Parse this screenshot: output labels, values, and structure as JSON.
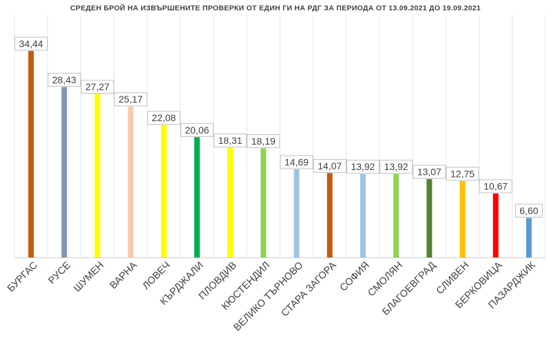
{
  "chart_data": {
    "type": "bar",
    "title": "СРЕДЕН БРОЙ НА ИЗВЪРШЕНИТЕ ПРОВЕРКИ ОТ ЕДИН ГИ НА РДГ ЗА ПЕРИОДА ОТ 13.09.2021 ДО 19.09.2021",
    "categories": [
      "БУРГАС",
      "РУСЕ",
      "ШУМЕН",
      "ВАРНА",
      "ЛОВЕЧ",
      "КЪРДЖАЛИ",
      "ПЛОВДИВ",
      "КЮСТЕНДИЛ",
      "ВЕЛИКО ТЪРНОВО",
      "СТАРА ЗАГОРА",
      "СОФИЯ",
      "СМОЛЯН",
      "БЛАГОЕВГРАД",
      "СЛИВЕН",
      "БЕРКОВИЦА",
      "ПАЗАРДЖИК"
    ],
    "values": [
      34.44,
      28.43,
      27.27,
      25.17,
      22.08,
      20.06,
      18.31,
      18.19,
      14.69,
      14.07,
      13.92,
      13.92,
      13.07,
      12.75,
      10.67,
      6.6
    ],
    "value_labels": [
      "34,44",
      "28,43",
      "27,27",
      "25,17",
      "22,08",
      "20,06",
      "18,31",
      "18,19",
      "14,69",
      "14,07",
      "13,92",
      "13,92",
      "13,07",
      "12,75",
      "10,67",
      "6,60"
    ],
    "colors": [
      "#c55a11",
      "#8497b0",
      "#ffff00",
      "#f8cbad",
      "#ffff00",
      "#00b050",
      "#ffff00",
      "#92d050",
      "#9dc3e6",
      "#c55a11",
      "#9dc3e6",
      "#92d050",
      "#548235",
      "#ffc000",
      "#ff0000",
      "#5b9bd5"
    ],
    "ylim": [
      0,
      34.44
    ],
    "grid": "vertical",
    "legend": "none"
  }
}
